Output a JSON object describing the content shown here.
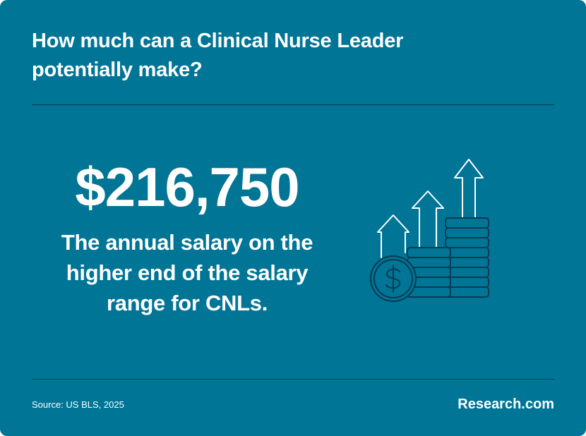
{
  "card": {
    "title": "How much can a Clinical Nurse Leader potentially make?",
    "figure": "$216,750",
    "description": "The annual salary on the higher end of the salary range for CNLs.",
    "icon": "coins-growth-icon",
    "source": "Source: US BLS, 2025",
    "brand": "Research.com"
  },
  "colors": {
    "background": "#007596",
    "text": "#ffffff",
    "divider": "#0b3a52",
    "icon_stroke": "#0b3a52",
    "arrow_stroke": "#ffffff"
  }
}
